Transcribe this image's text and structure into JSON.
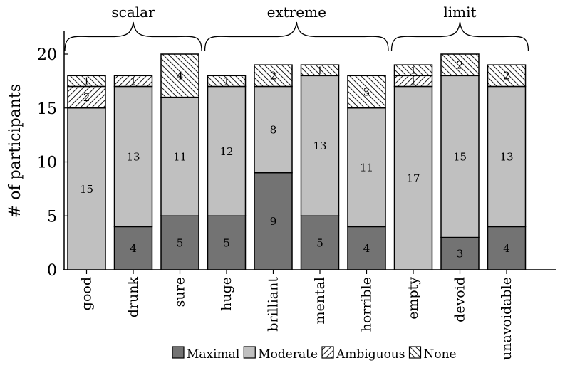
{
  "chart_data": {
    "type": "bar",
    "stacked": true,
    "categories": [
      "good",
      "drunk",
      "sure",
      "huge",
      "brilliant",
      "mental",
      "horrible",
      "empty",
      "devoid",
      "unavoidable"
    ],
    "series": [
      {
        "name": "Maximal",
        "values": [
          0,
          4,
          5,
          5,
          9,
          5,
          4,
          0,
          3,
          4
        ],
        "color": "#737373",
        "pattern": "solid"
      },
      {
        "name": "Moderate",
        "values": [
          15,
          13,
          11,
          12,
          8,
          13,
          11,
          17,
          15,
          13
        ],
        "color": "#c0c0c0",
        "pattern": "solid"
      },
      {
        "name": "Ambiguous",
        "values": [
          2,
          1,
          0,
          0,
          0,
          0,
          0,
          1,
          0,
          0
        ],
        "color": "#ffffff",
        "pattern": "hatch-ne"
      },
      {
        "name": "None",
        "values": [
          1,
          0,
          4,
          1,
          2,
          1,
          3,
          1,
          2,
          2
        ],
        "color": "#ffffff",
        "pattern": "hatch-nw"
      }
    ],
    "groups": [
      {
        "label": "scalar",
        "from": 0,
        "to": 2
      },
      {
        "label": "extreme",
        "from": 3,
        "to": 6
      },
      {
        "label": "limit",
        "from": 7,
        "to": 9
      }
    ],
    "title": "",
    "xlabel": "",
    "ylabel": "# of participants",
    "ylim": [
      0,
      20
    ],
    "yticks": [
      0,
      5,
      10,
      15,
      20
    ],
    "grid": false,
    "legend": "bottom"
  }
}
